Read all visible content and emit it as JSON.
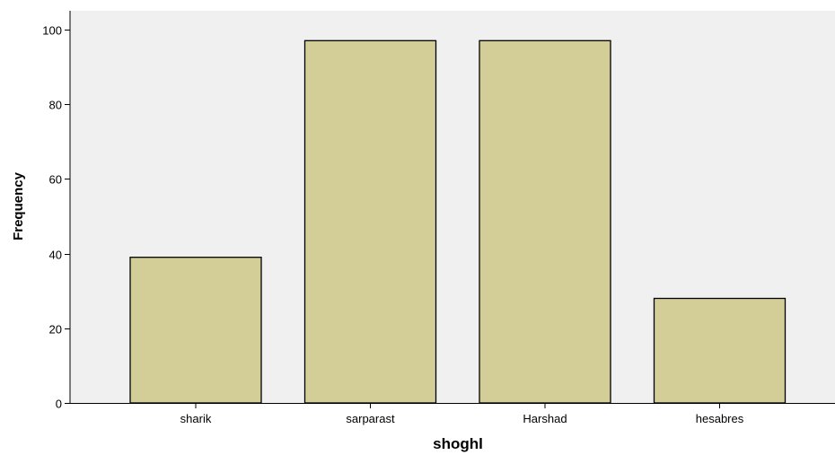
{
  "chart_data": {
    "type": "bar",
    "xlabel": "shoghl",
    "ylabel": "Frequency",
    "categories": [
      "sharik",
      "sarparast",
      "Harshad",
      "hesabres"
    ],
    "values": [
      39,
      97,
      97,
      28
    ],
    "ylim": [
      0,
      105
    ],
    "yticks": [
      0,
      20,
      40,
      60,
      80,
      100
    ],
    "grid": false,
    "colors": {
      "plot_background": "#f0f0f0",
      "bar_fill": "#d3ce97",
      "bar_stroke": "#000000",
      "axis": "#000000"
    }
  }
}
